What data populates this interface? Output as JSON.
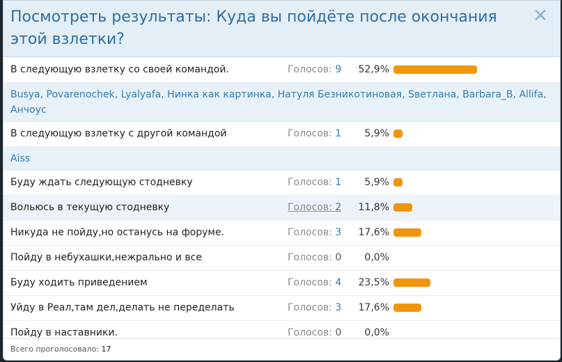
{
  "dialog": {
    "title": "Посмотреть результаты: Куда вы пойдёте после окончания этой взлетки?",
    "close_glyph": "✕"
  },
  "votes_prefix": "Голосов: ",
  "options": [
    {
      "label": "В следующую взлетку со своей командой.",
      "votes": "9",
      "percent": "52,9%",
      "fraction": 0.529,
      "voters": [
        "Busya",
        "Povarenochek",
        "Lyalyafa",
        "Нинка как картинка",
        "Натуля Безникотиновая",
        "Sветлана",
        "Barbara_B",
        "Allifa",
        "Анчоус"
      ]
    },
    {
      "label": "В следующую взлетку с другой командой",
      "votes": "1",
      "percent": "5,9%",
      "fraction": 0.059,
      "voters": [
        "Aiss"
      ]
    },
    {
      "label": "Буду ждать следующую стодневку",
      "votes": "1",
      "percent": "5,9%",
      "fraction": 0.059
    },
    {
      "label": "Вольюсь в текущую стодневку",
      "votes": "2",
      "percent": "11,8%",
      "fraction": 0.118,
      "highlight": true
    },
    {
      "label": "Никуда не пойду,но останусь на форуме.",
      "votes": "3",
      "percent": "17,6%",
      "fraction": 0.176
    },
    {
      "label": "Пойду в небухашки,нежрально и все",
      "votes": "0",
      "percent": "0,0%",
      "fraction": 0
    },
    {
      "label": "Буду ходить приведением",
      "votes": "4",
      "percent": "23,5%",
      "fraction": 0.235
    },
    {
      "label": "Уйду в Реал,там дел,делать не переделать",
      "votes": "3",
      "percent": "17,6%",
      "fraction": 0.176
    },
    {
      "label": "Пойду в наставники.",
      "votes": "0",
      "percent": "0,0%",
      "fraction": 0
    }
  ],
  "footer": {
    "label": "Всего проголосовало: ",
    "total": "17"
  },
  "colors": {
    "bar": "#f0960e",
    "link": "#2f7cb0",
    "header_bg": "#e3eef7",
    "title": "#2f6e9e"
  }
}
